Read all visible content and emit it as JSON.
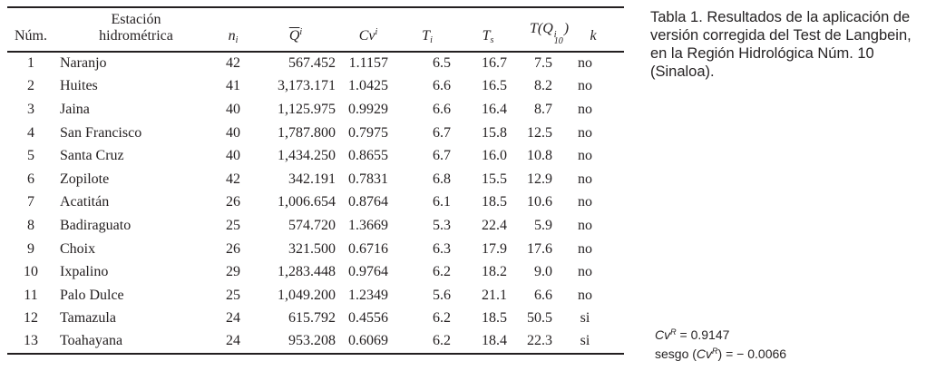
{
  "colors": {
    "text": "#231f20",
    "rule": "#231f20",
    "background": "#ffffff"
  },
  "caption": {
    "lines": [
      "Tabla 1. Resultados de la aplicación de",
      "versión corregida del Test de Langbein,",
      "en la Región Hidrológica Núm. 10",
      "(Sinaloa)."
    ]
  },
  "notes": {
    "cv": {
      "symbol": "Cv",
      "sup": "R",
      "rest": " = 0.9147"
    },
    "sesgo": {
      "prefix": "sesgo (",
      "symbol": "Cv",
      "sup": "R",
      "close": ")",
      "rest": " = − 0.0066"
    }
  },
  "table": {
    "columns": [
      {
        "id": "num",
        "header": {
          "text": "Núm."
        }
      },
      {
        "id": "station",
        "header": {
          "lines": [
            "Estación",
            "hidrométrica"
          ]
        }
      },
      {
        "id": "ni",
        "header": {
          "base": "n",
          "sub": "i",
          "italic": true
        }
      },
      {
        "id": "qbar",
        "header": {
          "base": "Q",
          "overline": true,
          "sup": "i",
          "italic": true
        }
      },
      {
        "id": "cv",
        "header": {
          "base": "Cv",
          "sup": "i",
          "italic": true
        }
      },
      {
        "id": "ti",
        "header": {
          "base": "T",
          "sub": "i",
          "italic": true
        }
      },
      {
        "id": "ts",
        "header": {
          "base": "T",
          "sub": "s",
          "italic": true
        }
      },
      {
        "id": "tq",
        "header": {
          "base": "T(Q",
          "supsub": [
            "i",
            "10"
          ],
          "suffix": ")",
          "italic": true
        }
      },
      {
        "id": "k",
        "header": {
          "base": "k",
          "italic": true
        }
      }
    ],
    "rows": [
      {
        "num": "1",
        "station": "Naranjo",
        "ni": "42",
        "qbar": "567.452",
        "cv": "1.1157",
        "ti": "6.5",
        "ts": "16.7",
        "tq": "7.5",
        "k": "no"
      },
      {
        "num": "2",
        "station": "Huites",
        "ni": "41",
        "qbar": "3,173.171",
        "cv": "1.0425",
        "ti": "6.6",
        "ts": "16.5",
        "tq": "8.2",
        "k": "no"
      },
      {
        "num": "3",
        "station": "Jaina",
        "ni": "40",
        "qbar": "1,125.975",
        "cv": "0.9929",
        "ti": "6.6",
        "ts": "16.4",
        "tq": "8.7",
        "k": "no"
      },
      {
        "num": "4",
        "station": "San Francisco",
        "ni": "40",
        "qbar": "1,787.800",
        "cv": "0.7975",
        "ti": "6.7",
        "ts": "15.8",
        "tq": "12.5",
        "k": "no"
      },
      {
        "num": "5",
        "station": "Santa Cruz",
        "ni": "40",
        "qbar": "1,434.250",
        "cv": "0.8655",
        "ti": "6.7",
        "ts": "16.0",
        "tq": "10.8",
        "k": "no"
      },
      {
        "num": "6",
        "station": "Zopilote",
        "ni": "42",
        "qbar": "342.191",
        "cv": "0.7831",
        "ti": "6.8",
        "ts": "15.5",
        "tq": "12.9",
        "k": "no"
      },
      {
        "num": "7",
        "station": "Acatitán",
        "ni": "26",
        "qbar": "1,006.654",
        "cv": "0.8764",
        "ti": "6.1",
        "ts": "18.5",
        "tq": "10.6",
        "k": "no"
      },
      {
        "num": "8",
        "station": "Badiraguato",
        "ni": "25",
        "qbar": "574.720",
        "cv": "1.3669",
        "ti": "5.3",
        "ts": "22.4",
        "tq": "5.9",
        "k": "no"
      },
      {
        "num": "9",
        "station": "Choix",
        "ni": "26",
        "qbar": "321.500",
        "cv": "0.6716",
        "ti": "6.3",
        "ts": "17.9",
        "tq": "17.6",
        "k": "no"
      },
      {
        "num": "10",
        "station": "Ixpalino",
        "ni": "29",
        "qbar": "1,283.448",
        "cv": "0.9764",
        "ti": "6.2",
        "ts": "18.2",
        "tq": "9.0",
        "k": "no"
      },
      {
        "num": "11",
        "station": "Palo Dulce",
        "ni": "25",
        "qbar": "1,049.200",
        "cv": "1.2349",
        "ti": "5.6",
        "ts": "21.1",
        "tq": "6.6",
        "k": "no"
      },
      {
        "num": "12",
        "station": "Tamazula",
        "ni": "24",
        "qbar": "615.792",
        "cv": "0.4556",
        "ti": "6.2",
        "ts": "18.5",
        "tq": "50.5",
        "k": "si"
      },
      {
        "num": "13",
        "station": "Toahayana",
        "ni": "24",
        "qbar": "953.208",
        "cv": "0.6069",
        "ti": "6.2",
        "ts": "18.4",
        "tq": "22.3",
        "k": "si"
      }
    ]
  }
}
